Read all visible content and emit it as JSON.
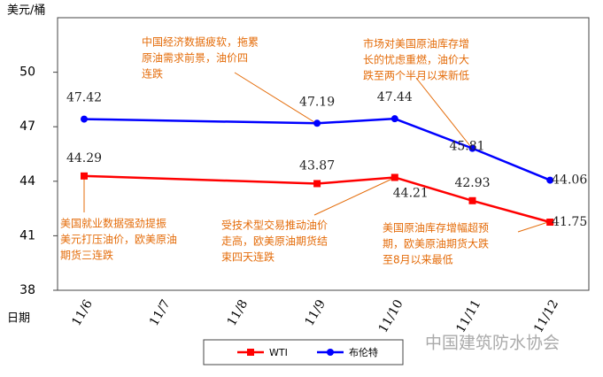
{
  "chart_data": {
    "type": "line",
    "y_label": "美元/桶",
    "x_label": "日期",
    "categories": [
      "11/6",
      "11/7",
      "11/8",
      "11/9",
      "11/10",
      "11/11",
      "11/12"
    ],
    "series": [
      {
        "name": "WTI",
        "color": "#ff0000",
        "marker": "square",
        "values": [
          44.29,
          null,
          null,
          43.87,
          44.21,
          42.93,
          41.75
        ]
      },
      {
        "name": "布伦特",
        "color": "#0000ff",
        "marker": "circle",
        "values": [
          47.42,
          null,
          null,
          47.19,
          47.44,
          45.81,
          44.06
        ]
      }
    ],
    "ylim": [
      38,
      53
    ],
    "yticks": [
      38,
      41,
      44,
      47,
      50
    ],
    "annotations": [
      {
        "lines": [
          "中国经济数据疲软，拖累",
          "原油需求前景，油价四",
          "连跌"
        ]
      },
      {
        "lines": [
          "市场对美国原油库存增",
          "长的忧虑重燃，油价大",
          "跌至两个半月以来新低"
        ]
      },
      {
        "lines": [
          "美国就业数据强劲提振",
          "美元打压油价，欧美原油",
          "期货三连跌"
        ]
      },
      {
        "lines": [
          "受技术型交易推动油价",
          "走高，欧美原油期货结",
          "束四天连跌"
        ]
      },
      {
        "lines": [
          "美国原油库存增幅超预",
          "期，欧美原油期货大跌",
          "至8月以来最低"
        ]
      }
    ],
    "watermark": "中国建筑防水协会"
  }
}
